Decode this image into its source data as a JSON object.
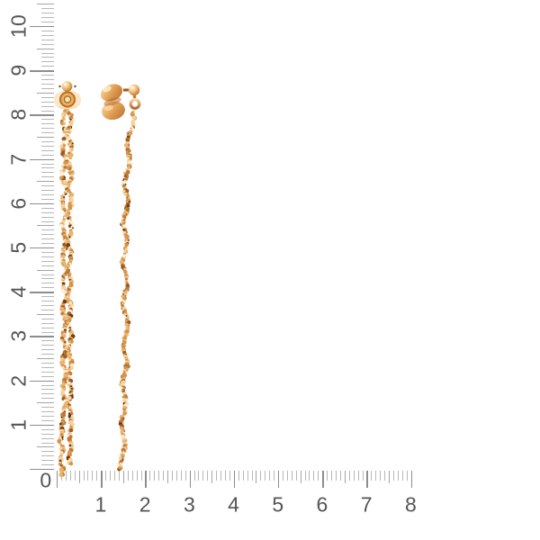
{
  "scene": {
    "description": "Pair of long rose-gold twisted rope chain drop earrings with ball studs and butterfly backs, photographed on a white background with centimeter rulers along the left and bottom edges",
    "background_color": "#ffffff"
  },
  "product": {
    "item": "chain drop earrings",
    "finish": "rose gold",
    "chain_style": "twisted rope chain",
    "colors": {
      "highlight": "#fdf0d6",
      "light": "#f5d3a0",
      "mid": "#e8b470",
      "gold": "#d6954e",
      "amber": "#bd7a36",
      "deep": "#9c5a22",
      "shadow": "#6b3c12",
      "speck": "#3a230b",
      "pale_clutch": "#fbeacb"
    }
  },
  "rulers": {
    "unit": "cm",
    "corner_label": "0",
    "tick_color_minor": "#b7b7b7",
    "tick_color_mid": "#a4a4a4",
    "tick_color_major": "#8d8d8d",
    "label_color": "#555555",
    "vertical": {
      "side": "left",
      "min": 0,
      "max": 10,
      "labels": [
        "1",
        "2",
        "3",
        "4",
        "5",
        "6",
        "7",
        "8",
        "9",
        "10"
      ]
    },
    "horizontal": {
      "side": "bottom",
      "min": 0,
      "max": 8,
      "labels": [
        "1",
        "2",
        "3",
        "4",
        "5",
        "6",
        "7",
        "8"
      ]
    }
  }
}
